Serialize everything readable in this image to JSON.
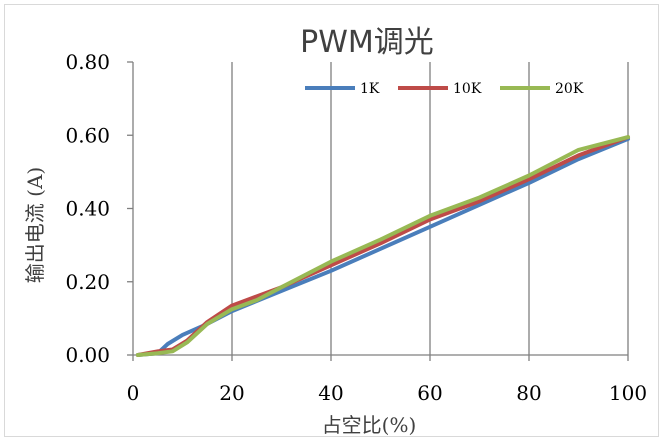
{
  "chart_data": {
    "type": "line",
    "title": "PWM调光",
    "xlabel": "占空比(%)",
    "ylabel": "输出电流 (A)",
    "xlim": [
      0,
      100
    ],
    "ylim": [
      0,
      0.8
    ],
    "xticks": [
      0,
      20,
      40,
      60,
      80,
      100
    ],
    "yticks": [
      0.0,
      0.2,
      0.4,
      0.6,
      0.8
    ],
    "xtick_labels": [
      "0",
      "20",
      "40",
      "60",
      "80",
      "100"
    ],
    "ytick_labels": [
      "0.00",
      "0.20",
      "0.40",
      "0.60",
      "0.80"
    ],
    "grid": "vertical",
    "legend_position": "top-right",
    "series": [
      {
        "name": "1K",
        "color": "#4a7ebb",
        "x": [
          1,
          5,
          7,
          10,
          15,
          20,
          30,
          40,
          50,
          60,
          70,
          80,
          90,
          100
        ],
        "y": [
          0.0,
          0.005,
          0.03,
          0.055,
          0.085,
          0.12,
          0.175,
          0.23,
          0.29,
          0.35,
          0.41,
          0.47,
          0.535,
          0.59
        ]
      },
      {
        "name": "10K",
        "color": "#be4b48",
        "x": [
          1,
          5,
          8,
          11,
          15,
          20,
          25,
          30,
          40,
          50,
          60,
          70,
          80,
          90,
          100
        ],
        "y": [
          0.0,
          0.01,
          0.015,
          0.04,
          0.09,
          0.135,
          0.16,
          0.185,
          0.245,
          0.305,
          0.37,
          0.42,
          0.48,
          0.545,
          0.595
        ]
      },
      {
        "name": "20K",
        "color": "#98b954",
        "x": [
          1,
          5,
          8,
          11,
          15,
          20,
          25,
          30,
          40,
          50,
          60,
          70,
          80,
          90,
          100
        ],
        "y": [
          0.0,
          0.005,
          0.01,
          0.035,
          0.085,
          0.125,
          0.15,
          0.185,
          0.255,
          0.315,
          0.38,
          0.43,
          0.49,
          0.56,
          0.595
        ]
      }
    ]
  }
}
